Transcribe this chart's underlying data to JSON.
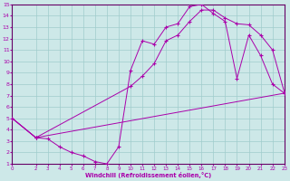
{
  "xlabel": "Windchill (Refroidissement éolien,°C)",
  "background_color": "#cde8e8",
  "grid_color": "#a0cccc",
  "line_color": "#aa00aa",
  "spine_color": "#660066",
  "xlim": [
    0,
    23
  ],
  "ylim": [
    1,
    15
  ],
  "xticks": [
    0,
    2,
    3,
    4,
    5,
    6,
    7,
    8,
    9,
    10,
    11,
    12,
    13,
    14,
    15,
    16,
    17,
    18,
    19,
    20,
    21,
    22,
    23
  ],
  "yticks": [
    1,
    2,
    3,
    4,
    5,
    6,
    7,
    8,
    9,
    10,
    11,
    12,
    13,
    14,
    15
  ],
  "line1_x": [
    0,
    2,
    3,
    4,
    5,
    6,
    7,
    8,
    9,
    10,
    11,
    12,
    13,
    14,
    15,
    16,
    17,
    18,
    19,
    20,
    21,
    22,
    23
  ],
  "line1_y": [
    5,
    3.3,
    3.2,
    2.5,
    2.0,
    1.7,
    1.2,
    1.0,
    2.5,
    9.2,
    11.8,
    11.5,
    13.0,
    13.3,
    14.8,
    15.0,
    14.2,
    13.5,
    8.5,
    12.3,
    10.5,
    8.0,
    7.2
  ],
  "line2_x": [
    0,
    2,
    10,
    11,
    12,
    13,
    14,
    15,
    16,
    17,
    18,
    19,
    20,
    21,
    22,
    23
  ],
  "line2_y": [
    5,
    3.3,
    7.8,
    8.7,
    9.8,
    11.8,
    12.3,
    13.5,
    14.5,
    14.5,
    13.8,
    13.3,
    13.2,
    12.3,
    11.0,
    7.3
  ],
  "line3_x": [
    0,
    2,
    23
  ],
  "line3_y": [
    5,
    3.3,
    7.2
  ]
}
